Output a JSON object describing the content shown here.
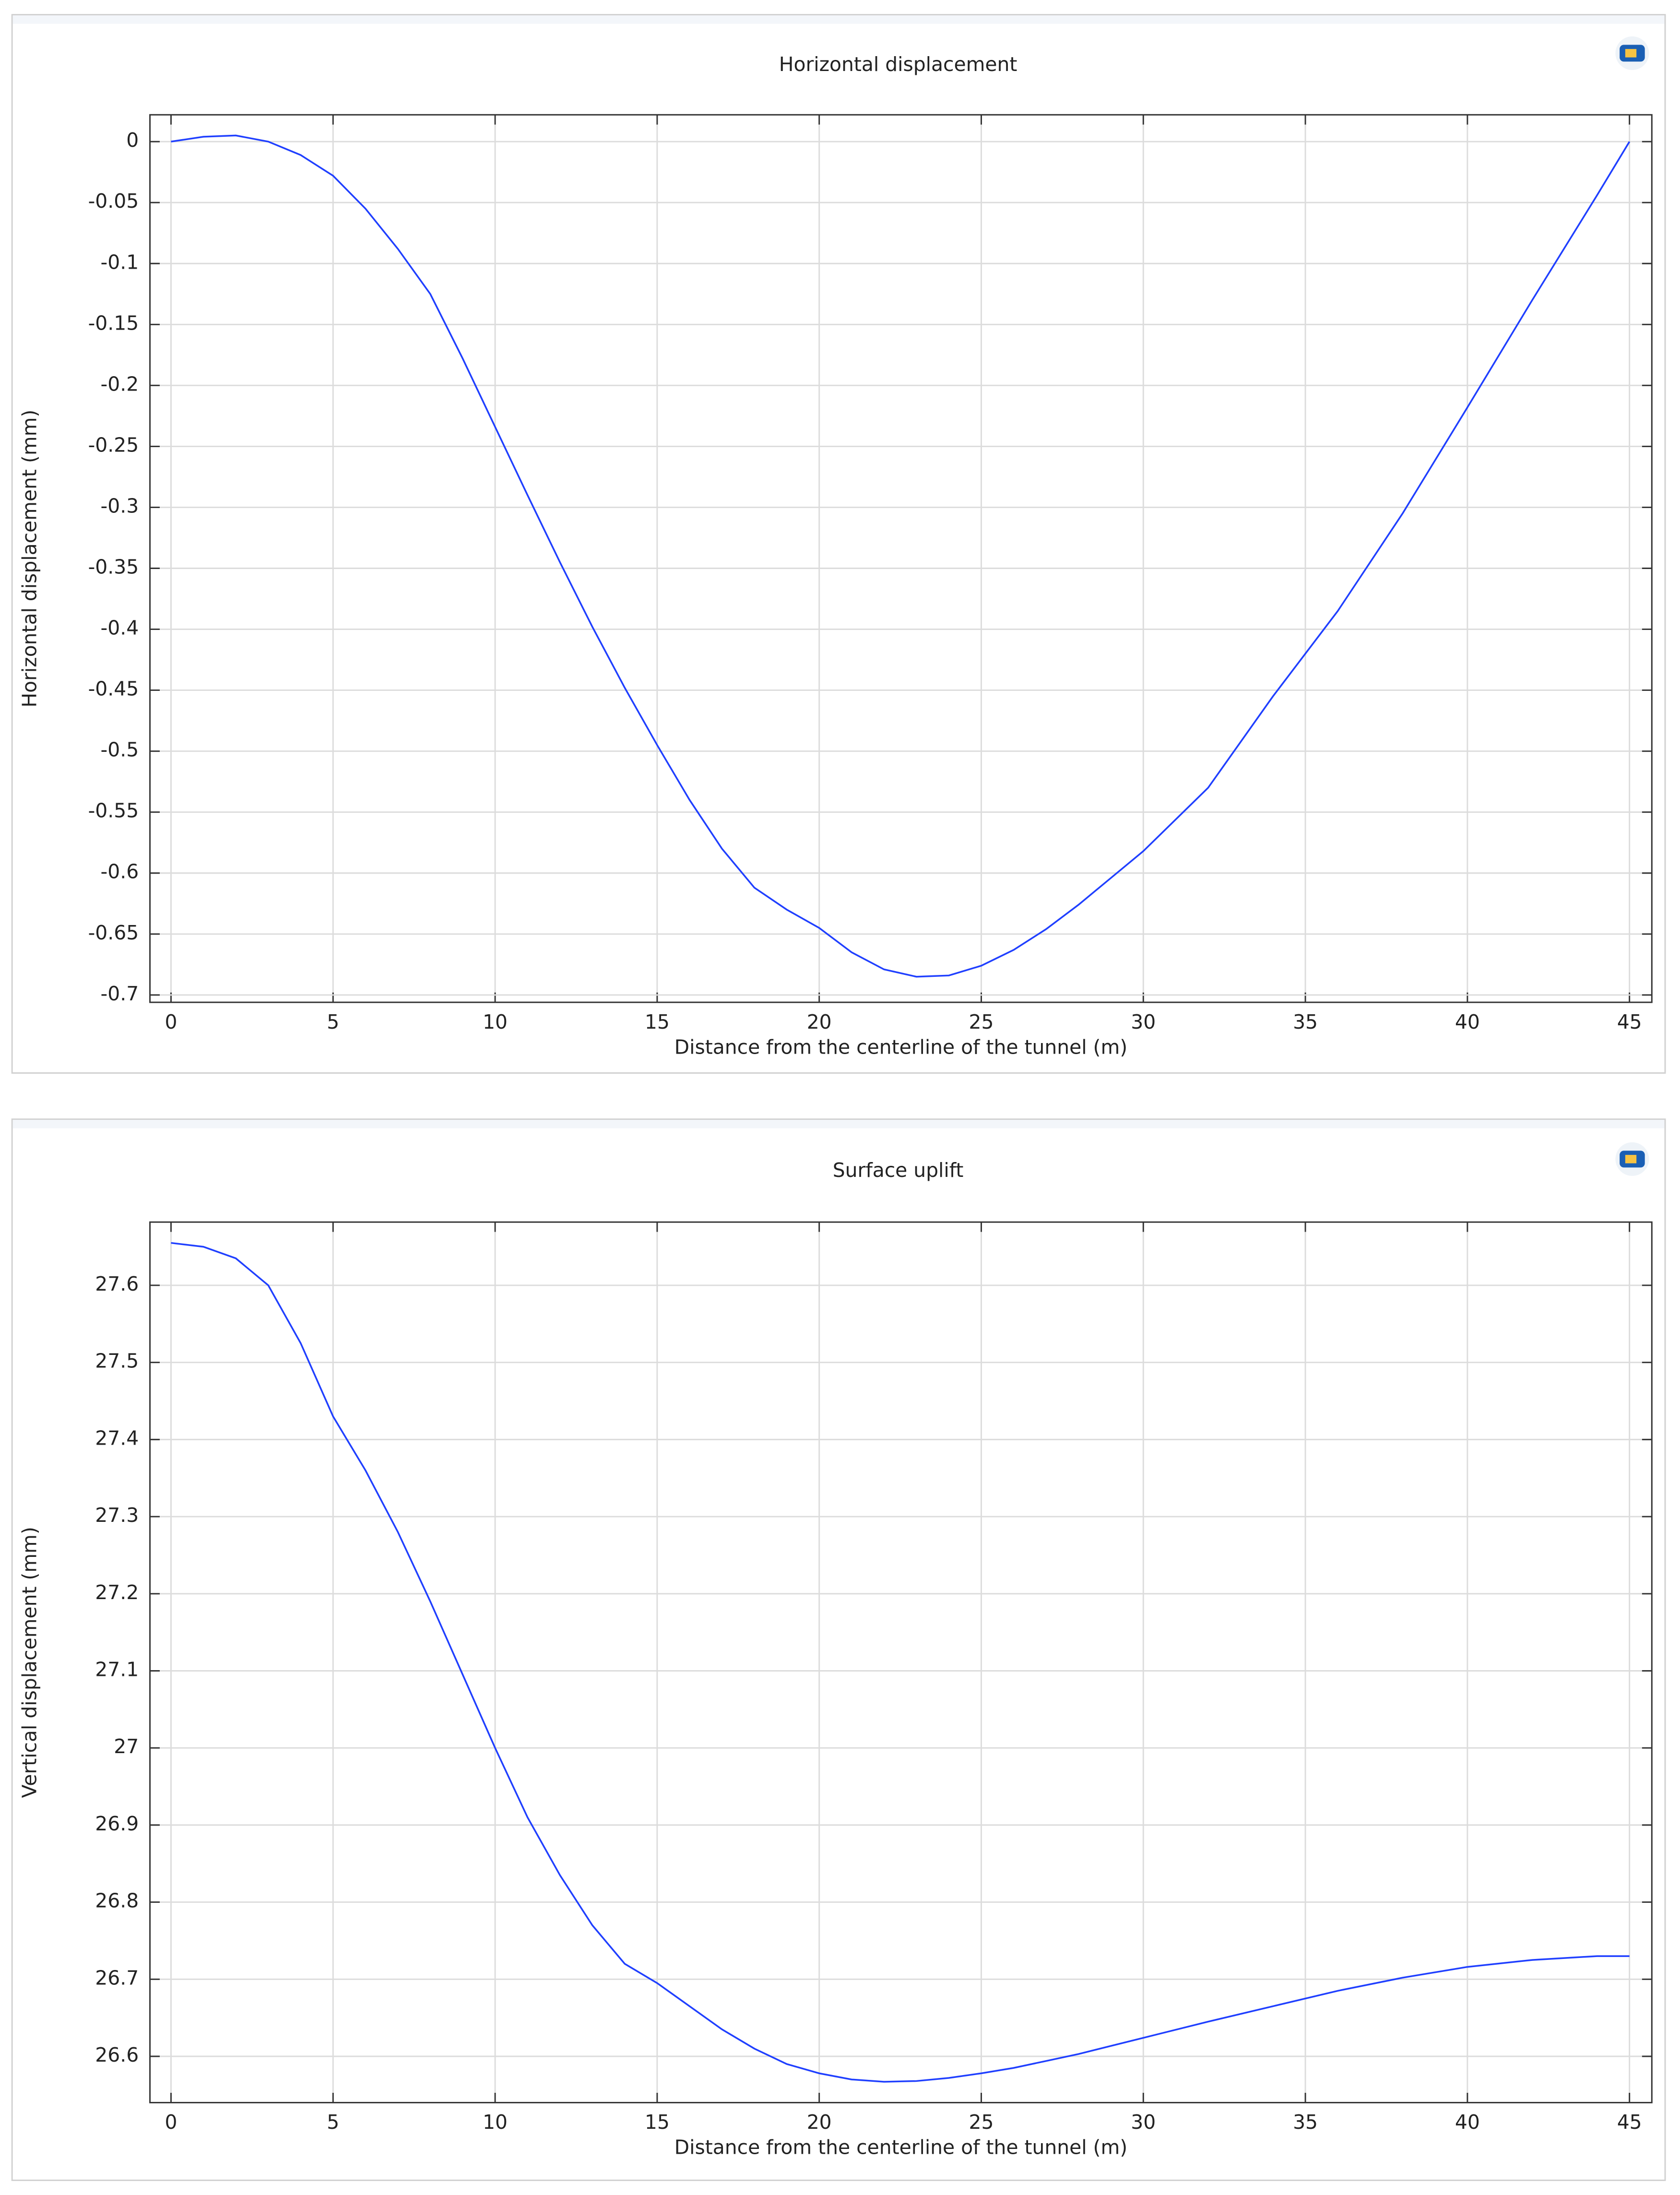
{
  "chart_data": [
    {
      "type": "line",
      "title": "Horizontal displacement",
      "xlabel": "Distance from the centerline of the tunnel (m)",
      "ylabel": "Horizontal displacement (mm)",
      "x": [
        0,
        1,
        2,
        3,
        4,
        5,
        6,
        7,
        8,
        9,
        10,
        11,
        12,
        13,
        14,
        15,
        16,
        17,
        18,
        19,
        20,
        21,
        22,
        23,
        24,
        25,
        26,
        27,
        28,
        29,
        30,
        32,
        34,
        36,
        38,
        40,
        42,
        44,
        45
      ],
      "values": [
        0,
        0.004,
        0.005,
        0.0,
        -0.011,
        -0.028,
        -0.055,
        -0.088,
        -0.125,
        -0.178,
        -0.234,
        -0.29,
        -0.345,
        -0.398,
        -0.448,
        -0.495,
        -0.54,
        -0.58,
        -0.612,
        -0.63,
        -0.645,
        -0.665,
        -0.679,
        -0.685,
        -0.684,
        -0.676,
        -0.663,
        -0.646,
        -0.626,
        -0.604,
        -0.582,
        -0.53,
        -0.455,
        -0.385,
        -0.305,
        -0.218,
        -0.13,
        -0.044,
        0
      ],
      "color": "#1f3fff",
      "xlim": [
        -0.65,
        45.69
      ],
      "ylim": [
        -0.706,
        0.022
      ],
      "xticks": [
        0,
        5,
        10,
        15,
        20,
        25,
        30,
        35,
        40,
        45
      ],
      "yticks": [
        0,
        -0.05,
        -0.1,
        -0.15,
        -0.2,
        -0.25,
        -0.3,
        -0.35,
        -0.4,
        -0.45,
        -0.5,
        -0.55,
        -0.6,
        -0.65,
        -0.7
      ],
      "grid": true
    },
    {
      "type": "line",
      "title": "Surface uplift",
      "xlabel": "Distance from the centerline of the tunnel (m)",
      "ylabel": "Vertical displacement (mm)",
      "x": [
        0,
        1,
        2,
        3,
        4,
        5,
        6,
        7,
        8,
        9,
        10,
        11,
        12,
        13,
        14,
        15,
        16,
        17,
        18,
        19,
        20,
        21,
        22,
        23,
        24,
        25,
        26,
        27,
        28,
        30,
        32,
        34,
        36,
        38,
        40,
        42,
        44,
        45
      ],
      "values": [
        27.655,
        27.65,
        27.635,
        27.6,
        27.525,
        27.43,
        27.36,
        27.28,
        27.19,
        27.095,
        27.0,
        26.91,
        26.835,
        26.77,
        26.72,
        26.695,
        26.665,
        26.635,
        26.61,
        26.59,
        26.578,
        26.57,
        26.567,
        26.568,
        26.572,
        26.578,
        26.585,
        26.594,
        26.603,
        26.624,
        26.645,
        26.665,
        26.685,
        26.702,
        26.716,
        26.725,
        26.73,
        26.73
      ],
      "color": "#1f3fff",
      "xlim": [
        -0.65,
        45.69
      ],
      "ylim": [
        26.54,
        27.682
      ],
      "xticks": [
        0,
        5,
        10,
        15,
        20,
        25,
        30,
        35,
        40,
        45
      ],
      "yticks": [
        26.6,
        26.7,
        26.8,
        26.9,
        27,
        27.1,
        27.2,
        27.3,
        27.4,
        27.5,
        27.6
      ],
      "grid": true
    }
  ]
}
